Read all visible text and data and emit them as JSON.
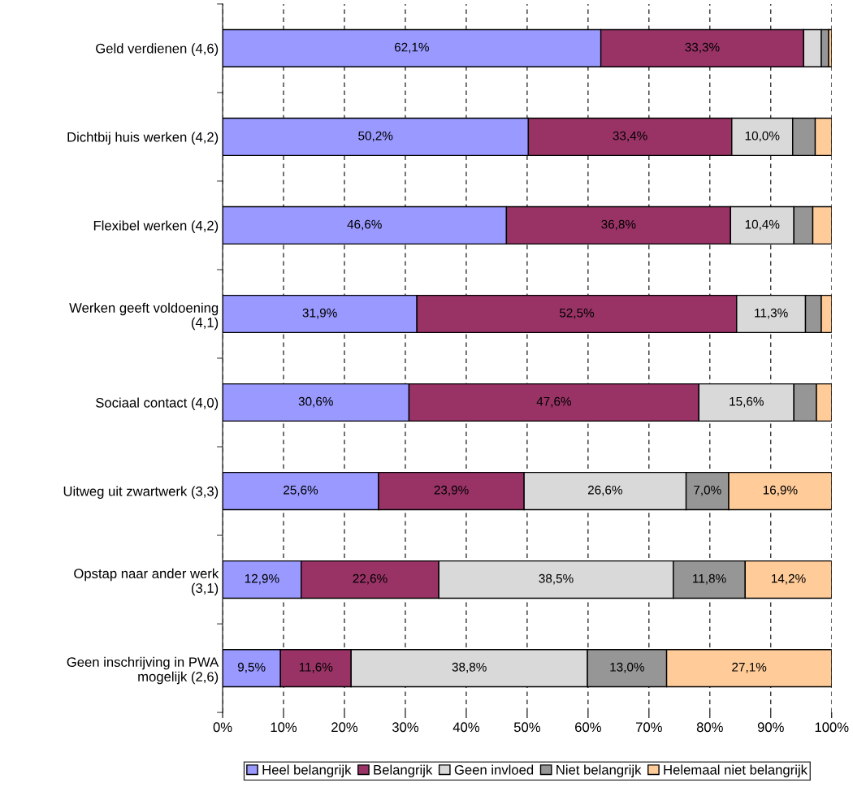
{
  "chart_data": {
    "type": "bar",
    "orientation": "horizontal",
    "stacked": true,
    "categories": [
      "Geld verdienen (4,6)",
      "Dichtbij huis werken (4,2)",
      "Flexibel werken (4,2)",
      "Werken geeft voldoening\n(4,1)",
      "Sociaal contact (4,0)",
      "Uitweg uit zwartwerk (3,3)",
      "Opstap naar ander werk\n(3,1)",
      "Geen inschrijving in PWA\nmogelijk (2,6)"
    ],
    "series": [
      {
        "name": "Heel belangrijk",
        "color": "#9999ff",
        "values": [
          62.1,
          50.2,
          46.6,
          31.9,
          30.6,
          25.6,
          12.9,
          9.5
        ],
        "value_labels": [
          "62,1%",
          "50,2%",
          "46,6%",
          "31,9%",
          "30,6%",
          "25,6%",
          "12,9%",
          "9,5%"
        ]
      },
      {
        "name": "Belangrijk",
        "color": "#993366",
        "values": [
          33.3,
          33.4,
          36.8,
          52.5,
          47.6,
          23.9,
          22.6,
          11.6
        ],
        "value_labels": [
          "33,3%",
          "33,4%",
          "36,8%",
          "52,5%",
          "47,6%",
          "23,9%",
          "22,6%",
          "11,6%"
        ]
      },
      {
        "name": "Geen invloed",
        "color": "#d9d9d9",
        "values": [
          2.9,
          10.0,
          10.4,
          11.3,
          15.6,
          26.6,
          38.5,
          38.8
        ],
        "value_labels": [
          null,
          "10,0%",
          "10,4%",
          "11,3%",
          "15,6%",
          "26,6%",
          "38,5%",
          "38,8%"
        ]
      },
      {
        "name": "Niet belangrijk",
        "color": "#969696",
        "values": [
          1.2,
          3.7,
          3.1,
          2.6,
          3.7,
          7.0,
          11.8,
          13.0
        ],
        "value_labels": [
          null,
          null,
          null,
          null,
          null,
          "7,0%",
          "11,8%",
          "13,0%"
        ]
      },
      {
        "name": "Helemaal niet belangrijk",
        "color": "#ffcc99",
        "values": [
          0.5,
          2.7,
          3.1,
          1.7,
          2.5,
          16.9,
          14.2,
          27.1
        ],
        "value_labels": [
          null,
          null,
          null,
          null,
          null,
          "16,9%",
          "14,2%",
          "27,1%"
        ]
      }
    ],
    "xlim": [
      0,
      100
    ],
    "xticks": [
      {
        "value": 0,
        "label": "0%"
      },
      {
        "value": 10,
        "label": "10%"
      },
      {
        "value": 20,
        "label": "20%"
      },
      {
        "value": 30,
        "label": "30%"
      },
      {
        "value": 40,
        "label": "40%"
      },
      {
        "value": 50,
        "label": "50%"
      },
      {
        "value": 60,
        "label": "60%"
      },
      {
        "value": 70,
        "label": "70%"
      },
      {
        "value": 80,
        "label": "80%"
      },
      {
        "value": 90,
        "label": "90%"
      },
      {
        "value": 100,
        "label": "100%"
      }
    ],
    "grid": "x",
    "line_style": "dashed",
    "legend": "bottom"
  }
}
